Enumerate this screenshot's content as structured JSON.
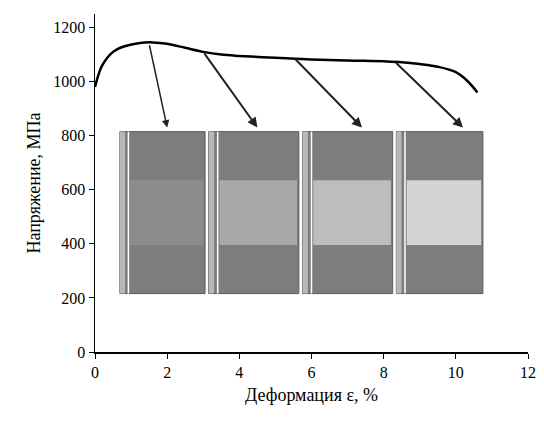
{
  "chart_data": {
    "type": "line",
    "x_label": "Деформация ε, %",
    "y_label": "Напряжение, МПа",
    "x": [
      0,
      0.2,
      0.5,
      0.8,
      1.2,
      1.6,
      2.0,
      2.5,
      3.0,
      3.5,
      4,
      5,
      6,
      7,
      8,
      8.5,
      9,
      9.5,
      10,
      10.3,
      10.6
    ],
    "values": [
      980,
      1060,
      1110,
      1130,
      1142,
      1145,
      1140,
      1125,
      1110,
      1100,
      1095,
      1088,
      1082,
      1078,
      1075,
      1072,
      1065,
      1055,
      1035,
      1005,
      960
    ],
    "color": "#000000",
    "line_style": "solid",
    "xlim": [
      0,
      12
    ],
    "xticks": [
      0,
      2,
      4,
      6,
      8,
      10,
      12
    ],
    "ylim": [
      0,
      1250
    ],
    "yticks": [
      0,
      200,
      400,
      600,
      800,
      1000,
      1200
    ],
    "grid": false
  }
}
